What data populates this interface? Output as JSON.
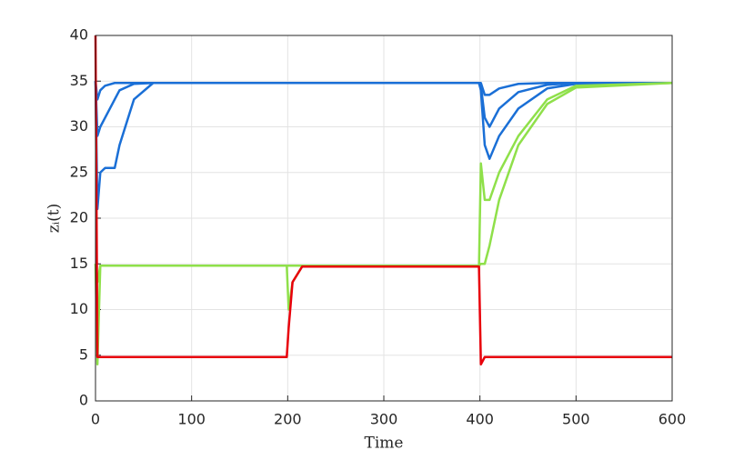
{
  "chart_data": {
    "type": "line",
    "x_label": "Time",
    "y_label": "zᵢ(t)",
    "x": [
      0,
      2,
      5,
      10,
      20,
      25,
      40,
      60,
      100,
      199,
      201,
      205,
      215,
      300,
      399,
      401,
      405,
      410,
      420,
      440,
      470,
      500,
      600
    ],
    "series": [
      {
        "color": "#1a6fd6",
        "values": [
          35,
          21,
          25,
          25.5,
          25.5,
          28,
          33,
          34.8,
          34.8,
          34.8,
          34.8,
          34.8,
          34.8,
          34.8,
          34.8,
          34,
          28,
          26.5,
          29,
          32,
          34.2,
          34.7,
          34.8
        ]
      },
      {
        "color": "#1a6fd6",
        "values": [
          35,
          29,
          30,
          31,
          33,
          34,
          34.7,
          34.8,
          34.8,
          34.8,
          34.8,
          34.8,
          34.8,
          34.8,
          34.8,
          34.5,
          31,
          30,
          32,
          33.8,
          34.6,
          34.8,
          34.8
        ]
      },
      {
        "color": "#1a6fd6",
        "values": [
          35,
          33,
          34,
          34.5,
          34.8,
          34.8,
          34.8,
          34.8,
          34.8,
          34.8,
          34.8,
          34.8,
          34.8,
          34.8,
          34.8,
          34.8,
          33.5,
          33.5,
          34.2,
          34.7,
          34.8,
          34.8,
          34.8
        ]
      },
      {
        "color": "#8fe04a",
        "values": [
          15,
          4,
          14.8,
          14.8,
          14.8,
          14.8,
          14.8,
          14.8,
          14.8,
          14.8,
          10,
          13,
          14.7,
          14.7,
          14.7,
          26,
          22,
          22,
          25,
          29,
          33,
          34.5,
          34.8
        ]
      },
      {
        "color": "#8fe04a",
        "values": [
          15,
          13,
          14.8,
          14.8,
          14.8,
          14.8,
          14.8,
          14.8,
          14.8,
          14.8,
          14.8,
          14.8,
          14.8,
          14.8,
          14.8,
          15,
          15,
          17,
          22,
          28,
          32.5,
          34.3,
          34.8
        ]
      },
      {
        "color": "#e8000b",
        "values": [
          40,
          4.8,
          4.8,
          4.8,
          4.8,
          4.8,
          4.8,
          4.8,
          4.8,
          4.8,
          8,
          13,
          14.7,
          14.7,
          14.7,
          4,
          4.8,
          4.8,
          4.8,
          4.8,
          4.8,
          4.8,
          4.8
        ]
      }
    ],
    "xlim": [
      0,
      600
    ],
    "xticks": [
      0,
      100,
      200,
      300,
      400,
      500,
      600
    ],
    "ylim": [
      0,
      40
    ],
    "yticks": [
      0,
      5,
      10,
      15,
      20,
      25,
      30,
      35,
      40
    ],
    "grid": true
  }
}
